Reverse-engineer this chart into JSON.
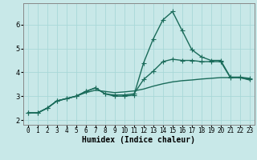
{
  "xlabel": "Humidex (Indice chaleur)",
  "background_color": "#c8e8e8",
  "line_color": "#1a6b5a",
  "x_values": [
    0,
    1,
    2,
    3,
    4,
    5,
    6,
    7,
    8,
    9,
    10,
    11,
    12,
    13,
    14,
    15,
    16,
    17,
    18,
    19,
    20,
    21,
    22,
    23
  ],
  "series1": [
    2.3,
    2.3,
    2.5,
    2.8,
    2.9,
    3.0,
    3.2,
    3.35,
    3.1,
    3.0,
    3.0,
    3.05,
    4.4,
    5.4,
    6.2,
    6.55,
    5.75,
    4.95,
    4.65,
    4.5,
    4.5,
    3.8,
    3.8,
    3.75
  ],
  "series2": [
    2.3,
    2.3,
    2.5,
    2.8,
    2.9,
    3.0,
    3.2,
    3.35,
    3.1,
    3.05,
    3.05,
    3.1,
    3.7,
    4.05,
    4.45,
    4.55,
    4.5,
    4.5,
    4.45,
    4.45,
    4.45,
    3.78,
    3.78,
    3.7
  ],
  "series3": [
    2.3,
    2.3,
    2.5,
    2.8,
    2.9,
    3.0,
    3.15,
    3.25,
    3.2,
    3.15,
    3.18,
    3.22,
    3.3,
    3.42,
    3.52,
    3.6,
    3.65,
    3.68,
    3.72,
    3.75,
    3.78,
    3.78,
    3.78,
    3.68
  ],
  "ylim": [
    1.8,
    6.9
  ],
  "xlim": [
    -0.5,
    23.5
  ],
  "yticks": [
    2,
    3,
    4,
    5,
    6
  ],
  "xtick_labels": [
    "0",
    "1",
    "2",
    "3",
    "4",
    "5",
    "6",
    "7",
    "8",
    "9",
    "10",
    "11",
    "12",
    "13",
    "14",
    "15",
    "16",
    "17",
    "18",
    "19",
    "20",
    "21",
    "22",
    "23"
  ],
  "grid_color": "#a8d8d8",
  "marker": "+",
  "marker_size": 4,
  "linewidth": 1.0,
  "tick_fontsize": 5.5,
  "xlabel_fontsize": 7.0
}
